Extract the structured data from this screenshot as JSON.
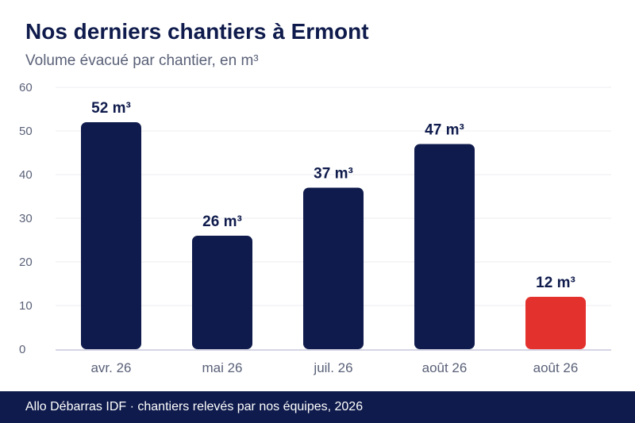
{
  "header": {
    "title": "Nos derniers chantiers à Ermont",
    "subtitle": "Volume évacué par chantier, en m³"
  },
  "footer": {
    "text": "Allo Débarras IDF · chantiers relevés par nos équipes, 2026"
  },
  "colors": {
    "primary": "#0f1b4c",
    "highlight": "#e3312d",
    "grid": "#ececf2",
    "axis": "#c9c9dd",
    "muted": "#5a6178"
  },
  "chart_data": {
    "type": "bar",
    "title": "Nos derniers chantiers à Ermont",
    "subtitle": "Volume évacué par chantier, en m³",
    "categories": [
      "avr. 26",
      "mai 26",
      "juil. 26",
      "août 26",
      "août 26"
    ],
    "values": [
      52,
      26,
      37,
      47,
      12
    ],
    "labels": [
      "52 m³",
      "26 m³",
      "37 m³",
      "47 m³",
      "12 m³"
    ],
    "highlight_index": 4,
    "ylim": [
      0,
      60
    ],
    "yticks": [
      0,
      10,
      20,
      30,
      40,
      50,
      60
    ],
    "grid": true,
    "legend": "none"
  }
}
